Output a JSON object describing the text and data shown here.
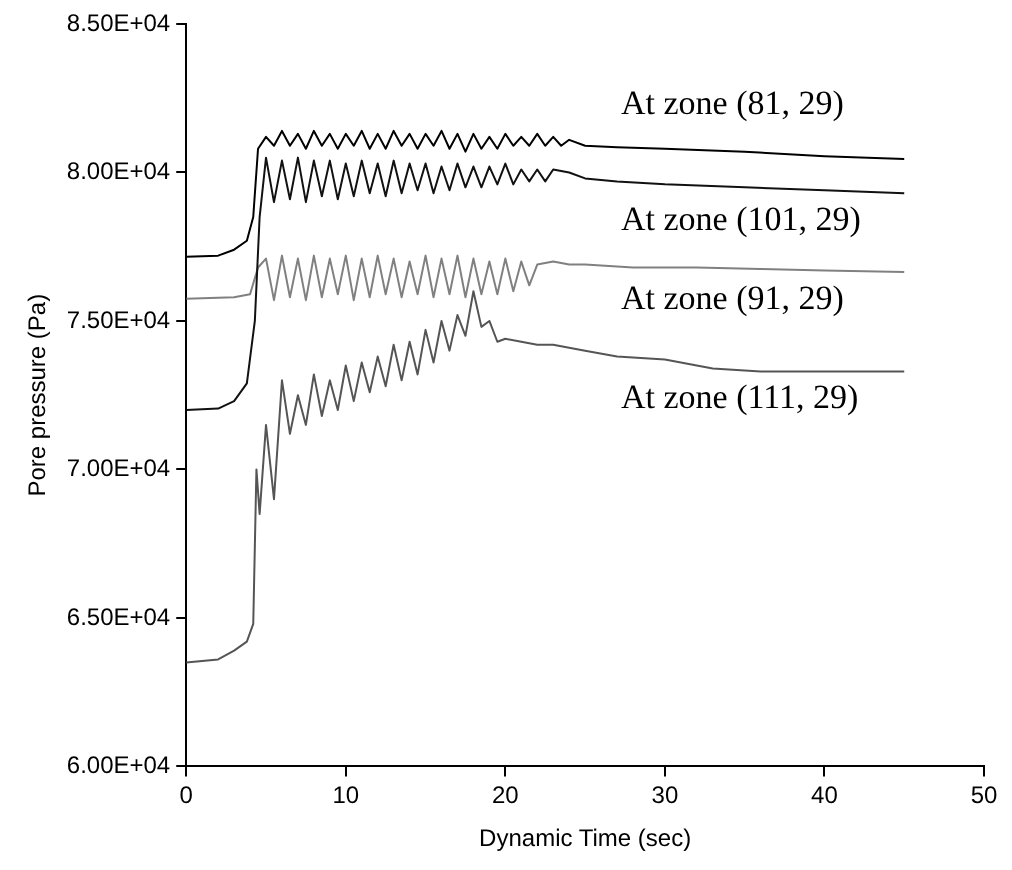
{
  "chart_data": {
    "type": "line",
    "xlabel": "Dynamic Time (sec)",
    "ylabel": "Pore pressure (Pa)",
    "xlim": [
      0,
      50
    ],
    "xticks": [
      0,
      10,
      20,
      30,
      40,
      50
    ],
    "ylim": [
      60000,
      85000
    ],
    "yticks": [
      {
        "value": 60000,
        "label": "6.00E+04"
      },
      {
        "value": 65000,
        "label": "6.50E+04"
      },
      {
        "value": 70000,
        "label": "7.00E+04"
      },
      {
        "value": 75000,
        "label": "7.50E+04"
      },
      {
        "value": 80000,
        "label": "8.00E+04"
      },
      {
        "value": 85000,
        "label": "8.50E+04"
      }
    ],
    "grid": false,
    "legend": false,
    "marker": "none",
    "line_style": "solid",
    "series": [
      {
        "color": "#000000",
        "x": [
          0,
          2,
          3,
          3.8,
          4.2,
          4.5,
          5,
          5.5,
          6,
          6.5,
          7,
          7.5,
          8,
          8.5,
          9,
          9.5,
          10,
          10.5,
          11,
          11.5,
          12,
          12.5,
          13,
          13.5,
          14,
          14.5,
          15,
          15.5,
          16,
          16.5,
          17,
          17.5,
          18,
          18.5,
          19,
          19.5,
          20,
          20.5,
          21,
          21.5,
          22,
          22.5,
          23,
          23.5,
          24,
          25,
          27,
          30,
          35,
          40,
          45
        ],
        "values": [
          77160,
          77200,
          77400,
          77700,
          78500,
          80800,
          81200,
          80900,
          81400,
          80900,
          81300,
          80800,
          81400,
          80900,
          81300,
          80800,
          81300,
          80900,
          81400,
          80800,
          81300,
          80800,
          81400,
          80900,
          81300,
          80800,
          81300,
          80900,
          81400,
          80800,
          81300,
          80700,
          81300,
          80800,
          81200,
          80800,
          81300,
          80900,
          81200,
          80900,
          81300,
          80900,
          81200,
          80900,
          81100,
          80900,
          80850,
          80800,
          80700,
          80550,
          80450
        ]
      },
      {
        "color": "#111111",
        "x": [
          0,
          2,
          3,
          3.8,
          4.3,
          4.6,
          5,
          5.5,
          6,
          6.5,
          7,
          7.5,
          8,
          8.5,
          9,
          9.5,
          10,
          10.5,
          11,
          11.5,
          12,
          12.5,
          13,
          13.5,
          14,
          14.5,
          15,
          15.5,
          16,
          16.5,
          17,
          17.5,
          18,
          18.5,
          19,
          19.5,
          20,
          20.5,
          21,
          21.5,
          22,
          22.5,
          23,
          24,
          25,
          27,
          30,
          35,
          40,
          45
        ],
        "values": [
          72000,
          72050,
          72300,
          72900,
          75000,
          78500,
          80500,
          79000,
          80400,
          79100,
          80500,
          79000,
          80400,
          79200,
          80400,
          79100,
          80300,
          79200,
          80400,
          79300,
          80300,
          79200,
          80400,
          79300,
          80300,
          79400,
          80300,
          79300,
          80200,
          79400,
          80300,
          79500,
          80200,
          79500,
          80200,
          79600,
          80300,
          79600,
          80100,
          79700,
          80100,
          79700,
          80100,
          80000,
          79800,
          79700,
          79600,
          79500,
          79400,
          79300
        ]
      },
      {
        "color": "#808080",
        "x": [
          0,
          3,
          4,
          4.5,
          5,
          5.5,
          6,
          6.5,
          7,
          7.5,
          8,
          8.5,
          9,
          9.5,
          10,
          10.5,
          11,
          11.5,
          12,
          12.5,
          13,
          13.5,
          14,
          14.5,
          15,
          15.5,
          16,
          16.5,
          17,
          17.5,
          18,
          18.5,
          19,
          19.5,
          20,
          20.5,
          21,
          21.5,
          22,
          23,
          24,
          25,
          28,
          32,
          36,
          40,
          45
        ],
        "values": [
          75750,
          75800,
          75900,
          76800,
          77100,
          75700,
          77200,
          75800,
          77100,
          75700,
          77200,
          75800,
          77100,
          75900,
          77200,
          75700,
          77100,
          75800,
          77200,
          75900,
          77100,
          75800,
          77000,
          75900,
          77200,
          75800,
          77100,
          75900,
          77200,
          75800,
          77100,
          75900,
          77000,
          75900,
          77100,
          76000,
          77000,
          76200,
          76900,
          77000,
          76900,
          76900,
          76800,
          76800,
          76750,
          76700,
          76650
        ]
      },
      {
        "color": "#555555",
        "x": [
          0,
          2,
          3,
          3.8,
          4.2,
          4.4,
          4.6,
          5,
          5.5,
          6,
          6.5,
          7,
          7.5,
          8,
          8.5,
          9,
          9.5,
          10,
          10.5,
          11,
          11.5,
          12,
          12.5,
          13,
          13.5,
          14,
          14.5,
          15,
          15.5,
          16,
          16.5,
          17,
          17.5,
          18,
          18.5,
          19,
          19.5,
          20,
          21,
          22,
          23,
          25,
          27,
          30,
          33,
          36,
          40,
          45
        ],
        "values": [
          63500,
          63600,
          63900,
          64200,
          64800,
          70000,
          68500,
          71500,
          69000,
          73000,
          71200,
          72500,
          71500,
          73200,
          71800,
          73000,
          72000,
          73500,
          72300,
          73600,
          72600,
          73800,
          72800,
          74200,
          73000,
          74300,
          73200,
          74700,
          73600,
          75000,
          74000,
          75200,
          74500,
          76000,
          74800,
          75000,
          74300,
          74400,
          74300,
          74200,
          74200,
          74000,
          73800,
          73700,
          73400,
          73300,
          73300,
          73300
        ]
      }
    ],
    "annotations": [
      "At zone (81, 29)",
      "At zone (101, 29)",
      "At zone (91, 29)",
      "At zone (111, 29)"
    ]
  }
}
